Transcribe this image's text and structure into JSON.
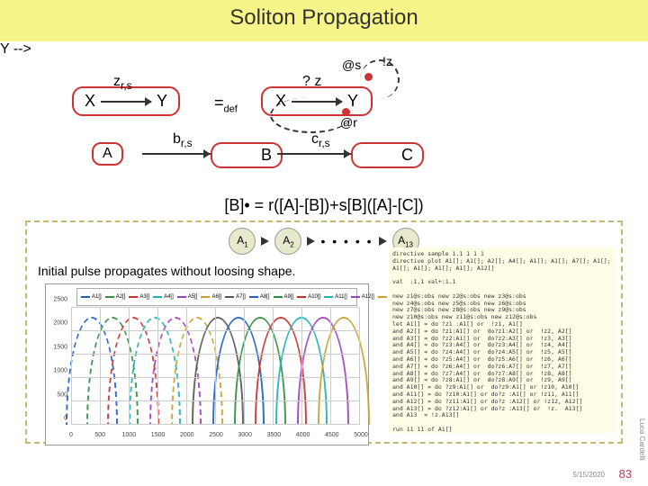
{
  "title": "Soliton Propagation",
  "motif1": {
    "X": "X",
    "Y": "Y",
    "label": "z",
    "labelsub": "r,s"
  },
  "motif2": {
    "X": "X",
    "Y": "Y",
    "qz": "? z",
    "atS": "@s",
    "bangZ": "!z",
    "atR": "@r"
  },
  "motif3": {
    "B": "B",
    "label": "b",
    "labelsub": "r,s"
  },
  "motif4": {
    "C": "C",
    "label": "c",
    "labelsub": "r,s"
  },
  "A_node": "A",
  "eqdef": {
    "eq": "=",
    "sub": "def"
  },
  "equation": "[B]• = r([A]-[B])+s[B]([A]-[C])",
  "chain": {
    "nodes": [
      {
        "base": "A",
        "sub": "1"
      },
      {
        "base": "A",
        "sub": "2"
      },
      {
        "base": "A",
        "sub": "13"
      }
    ],
    "dots": "• • • • •"
  },
  "caption": "Initial pulse propagates without loosing shape.",
  "chart": {
    "series_colors": [
      "#1f5fbf",
      "#2f8f3f",
      "#c43030",
      "#1fb0b8",
      "#9f3fbf",
      "#c7a12e",
      "#555555",
      "#1f5fbf",
      "#2f8f3f",
      "#c43030",
      "#1fb0b8",
      "#9f3fbf",
      "#c7a12e"
    ],
    "legend_labels": [
      "A1[]",
      "A2[]",
      "A3[]",
      "A4[]",
      "A5[]",
      "A6[]",
      "A7[]",
      "A8[]",
      "A9[]",
      "A10[]",
      "A11[]",
      "A12[]",
      "A13[]"
    ],
    "x_ticks": [
      "0",
      "500",
      "1000",
      "1500",
      "2000",
      "2500",
      "3000",
      "3500",
      "4000",
      "4500",
      "5000"
    ],
    "y_ticks": [
      "0",
      "500",
      "1000",
      "1500",
      "2000",
      "2500"
    ],
    "y_axis_label": "",
    "x_axis_label": "",
    "background": "#ffffff"
  },
  "code": "directive sample 1.1 1 1 1\ndirective plot A1[]; A1[]; A2[]; A4[]; A1[]; A1[]; A7[]; A1[];\nA1[]; A1[]; A1[]; A1[]; A12[]\n\nval  :1.1 val+:1.1\n\nnew z1@s:obs new z2@s:obs new z3@s:obs\nnew z4@s:obs new z5@s:obs new z6@s:obs\nnew z7@s:obs new z8@s:obs new z9@s:obs\nnew z10@s:obs new z11@s:obs new z12@s:obs\nlet A1[] = do ?z1 :A1[] or  !z1, A1[]\nand A2[] = do ?z1:A1[] or  do?z1:A2[] or  !z2, A2[]\nand A3[] = do ?z2:A1[] or  do?z2:A3[] or  !z3, A3[]\nand A4[] = do ?z3:A4[] or  do?z3:A4[] or  !z4, A4[]\nand A5[] = do ?z4:A4[] or  do?z4:A5[] or  !z5, A5[]\nand A6[] = do ?z5:A4[] or  do?z5:A6[] or  !z6, A6[]\nand A7[] = do ?z6:A4[] or  do?z6:A7[] or  !z7, A7[]\nand A8[] = do ?z7:A4[] or  do?z7:A8[] or  !z8, A8[]\nand A9[] = do ?z8:A1[] or  do?z8:A9[] or  !z9, A9[]\nand A10[] = do ?z9:A1[] or  do?z9:A1[] or !z10, A10[]\nand A11[] = do ?z10:A1[] or do?z :A1[] or !z11, A11[]\nand A12[] = do ?z11:A1[] or do?z :A12[] or !z12, A12[]\nand A13[] = do ?z12:A1[] or do?z :A13[] or  !z.  A13[]\nand A13  = !z.A13[]\n\nrun 11 11 of A1[]",
  "footer": {
    "author": "Luca Cardelli",
    "date": "5/15/2020",
    "page": "83"
  }
}
